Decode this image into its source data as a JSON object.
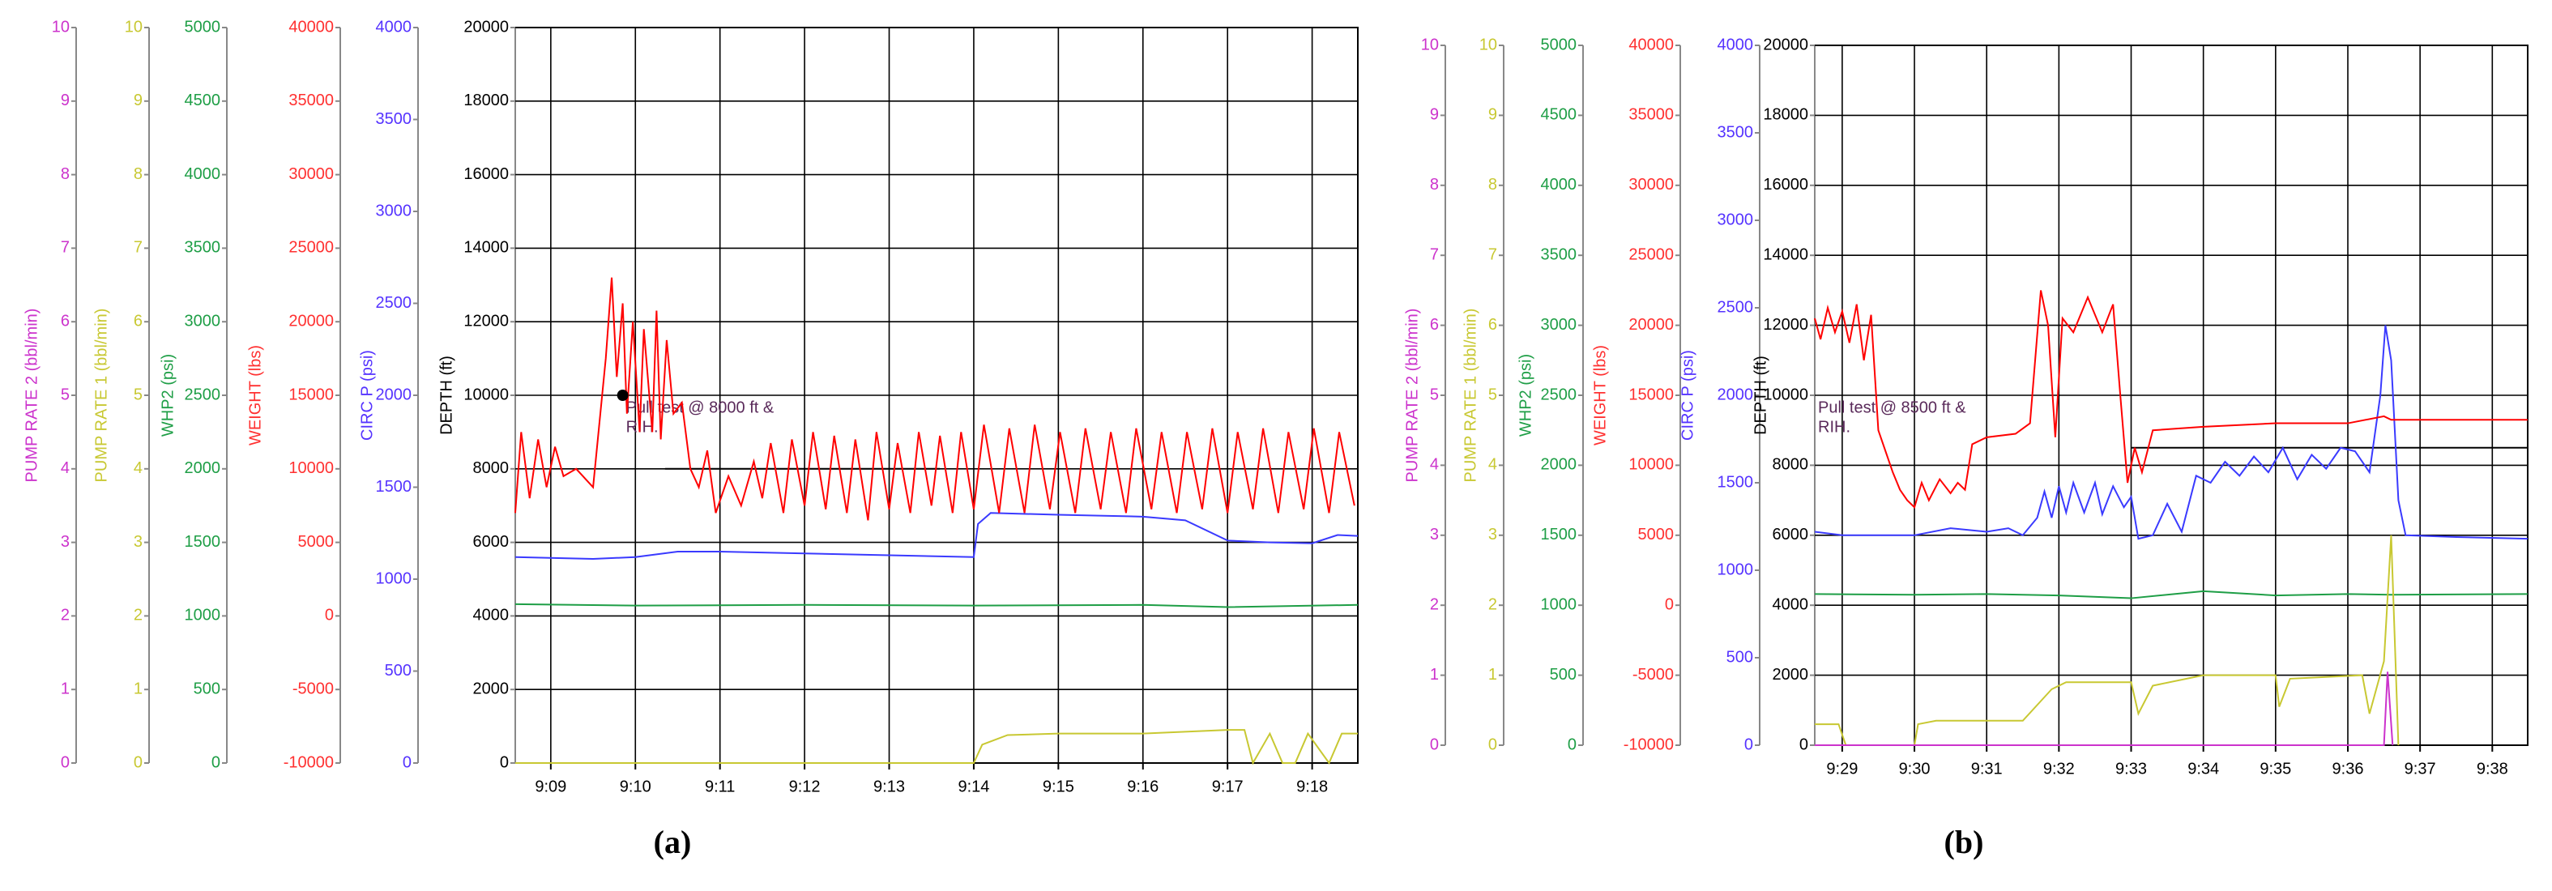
{
  "chart_data": [
    {
      "type": "line",
      "caption": "(a)",
      "grid": true,
      "xlim": [
        548.58,
        558.54
      ],
      "xticks": [
        {
          "value": 549,
          "label": "9:09"
        },
        {
          "value": 550,
          "label": "9:10"
        },
        {
          "value": 551,
          "label": "9:11"
        },
        {
          "value": 552,
          "label": "9:12"
        },
        {
          "value": 553,
          "label": "9:13"
        },
        {
          "value": 554,
          "label": "9:14"
        },
        {
          "value": 555,
          "label": "9:15"
        },
        {
          "value": 556,
          "label": "9:16"
        },
        {
          "value": 557,
          "label": "9:17"
        },
        {
          "value": 558,
          "label": "9:18"
        }
      ],
      "yaxes": [
        {
          "label": "PUMP RATE 2 (bbl/min)",
          "color": "#cc33cc",
          "ylim": [
            0,
            10
          ],
          "yticks": [
            0,
            1,
            2,
            3,
            4,
            5,
            6,
            7,
            8,
            9,
            10
          ]
        },
        {
          "label": "PUMP RATE 1 (bbl/min)",
          "color": "#c8c832",
          "ylim": [
            0,
            10
          ],
          "yticks": [
            0,
            1,
            2,
            3,
            4,
            5,
            6,
            7,
            8,
            9,
            10
          ]
        },
        {
          "label": "WHP2 (psi)",
          "color": "#1e9e46",
          "ylim": [
            0,
            5000
          ],
          "yticks": [
            0,
            500,
            1000,
            1500,
            2000,
            2500,
            3000,
            3500,
            4000,
            4500,
            5000
          ]
        },
        {
          "label": "WEIGHT (lbs)",
          "color": "#ff3030",
          "ylim": [
            -10000,
            40000
          ],
          "yticks": [
            -10000,
            -5000,
            0,
            5000,
            10000,
            15000,
            20000,
            25000,
            30000,
            35000,
            40000
          ]
        },
        {
          "label": "CIRC P (psi)",
          "color": "#5533ff",
          "ylim": [
            0,
            4000
          ],
          "yticks": [
            0,
            500,
            1000,
            1500,
            2000,
            2500,
            3000,
            3500,
            4000
          ]
        },
        {
          "label": "DEPTH (ft)",
          "color": "#000000",
          "ylim": [
            0,
            20000
          ],
          "yticks": [
            0,
            2000,
            4000,
            6000,
            8000,
            10000,
            12000,
            14000,
            16000,
            18000,
            20000
          ]
        }
      ],
      "series": [
        {
          "axis": 2,
          "color": "#1e9e46",
          "x": [
            548.58,
            550,
            552,
            554,
            556,
            557,
            558.54
          ],
          "values": [
            1080,
            1070,
            1075,
            1070,
            1075,
            1060,
            1075
          ]
        },
        {
          "axis": 1,
          "color": "#c8c832",
          "x": [
            548.58,
            554.0,
            554.1,
            554.4,
            555,
            556,
            557,
            557.2,
            557.3,
            557.5,
            557.65,
            557.8,
            557.95,
            558.2,
            558.35,
            558.54
          ],
          "values": [
            0,
            0,
            0.25,
            0.38,
            0.4,
            0.4,
            0.45,
            0.45,
            0,
            0.4,
            0,
            0,
            0.4,
            0,
            0.4,
            0.4
          ]
        },
        {
          "axis": 4,
          "color": "#3a3aff",
          "x": [
            548.58,
            549.5,
            550.0,
            550.5,
            551.0,
            552.0,
            553.0,
            554.0,
            554.05,
            554.2,
            555.0,
            556.0,
            556.5,
            557.0,
            557.5,
            558.0,
            558.3,
            558.54
          ],
          "values": [
            1120,
            1110,
            1120,
            1150,
            1150,
            1140,
            1130,
            1120,
            1300,
            1360,
            1350,
            1340,
            1320,
            1210,
            1200,
            1195,
            1240,
            1235
          ]
        },
        {
          "axis": 5,
          "color": "#000000",
          "x": [
            550.35,
            553.6
          ],
          "values": [
            8000,
            8000
          ]
        },
        {
          "axis": 3,
          "color": "#ff0000",
          "x": [
            548.58,
            548.65,
            548.75,
            548.85,
            548.95,
            549.05,
            549.15,
            549.3,
            549.5,
            549.65,
            549.72,
            549.78,
            549.85,
            549.9,
            549.97,
            550.05,
            550.1,
            550.2,
            550.25,
            550.3,
            550.37,
            550.45,
            550.55,
            550.65,
            550.75,
            550.85,
            550.95,
            551.1,
            551.25,
            551.4,
            551.5,
            551.6,
            551.75,
            551.85,
            552.0,
            552.1,
            552.25,
            552.35,
            552.5,
            552.6,
            552.75,
            552.85,
            553.0,
            553.1,
            553.25,
            553.35,
            553.5,
            553.6,
            553.75,
            553.85,
            554.0,
            554.12,
            554.3,
            554.42,
            554.6,
            554.72,
            554.9,
            555.02,
            555.2,
            555.32,
            555.5,
            555.62,
            555.8,
            555.92,
            556.1,
            556.22,
            556.4,
            556.52,
            556.7,
            556.82,
            557.0,
            557.12,
            557.3,
            557.42,
            557.6,
            557.72,
            557.9,
            558.02,
            558.2,
            558.32,
            558.5
          ],
          "values": [
            7000,
            12500,
            8000,
            12000,
            8750,
            11500,
            9500,
            10000,
            8750,
            17500,
            23000,
            16250,
            21250,
            13750,
            20000,
            12500,
            19500,
            12500,
            20750,
            12000,
            18750,
            13750,
            14500,
            10000,
            8750,
            11250,
            7000,
            9500,
            7500,
            10500,
            8000,
            11750,
            7000,
            12000,
            7500,
            12500,
            7250,
            12250,
            7000,
            12000,
            6500,
            12500,
            7250,
            11750,
            7000,
            12500,
            7500,
            12250,
            7000,
            12500,
            7250,
            13000,
            7000,
            12750,
            7000,
            13000,
            7250,
            12500,
            7000,
            12750,
            7250,
            12500,
            7000,
            12750,
            7250,
            12500,
            7000,
            12500,
            7250,
            12750,
            7000,
            12500,
            7250,
            12750,
            7000,
            12500,
            7250,
            12750,
            7000,
            12500,
            7500
          ]
        }
      ],
      "annotations": [
        {
          "lines": [
            "Pull test @ 8000 ft &",
            "RIH."
          ],
          "axis": 5,
          "x": 549.85,
          "y": 10000,
          "marker": true
        }
      ]
    },
    {
      "type": "line",
      "caption": "(b)",
      "grid": true,
      "xlim": [
        568.62,
        578.49
      ],
      "xticks": [
        {
          "value": 569,
          "label": "9:29"
        },
        {
          "value": 570,
          "label": "9:30"
        },
        {
          "value": 571,
          "label": "9:31"
        },
        {
          "value": 572,
          "label": "9:32"
        },
        {
          "value": 573,
          "label": "9:33"
        },
        {
          "value": 574,
          "label": "9:34"
        },
        {
          "value": 575,
          "label": "9:35"
        },
        {
          "value": 576,
          "label": "9:36"
        },
        {
          "value": 577,
          "label": "9:37"
        },
        {
          "value": 578,
          "label": "9:38"
        }
      ],
      "yaxes": [
        {
          "label": "PUMP RATE 2 (bbl/min)",
          "color": "#cc33cc",
          "ylim": [
            0,
            10
          ],
          "yticks": [
            0,
            1,
            2,
            3,
            4,
            5,
            6,
            7,
            8,
            9,
            10
          ]
        },
        {
          "label": "PUMP RATE 1 (bbl/min)",
          "color": "#c8c832",
          "ylim": [
            0,
            10
          ],
          "yticks": [
            0,
            1,
            2,
            3,
            4,
            5,
            6,
            7,
            8,
            9,
            10
          ]
        },
        {
          "label": "WHP2 (psi)",
          "color": "#1e9e46",
          "ylim": [
            0,
            5000
          ],
          "yticks": [
            0,
            500,
            1000,
            1500,
            2000,
            2500,
            3000,
            3500,
            4000,
            4500,
            5000
          ]
        },
        {
          "label": "WEIGHT (lbs)",
          "color": "#ff3030",
          "ylim": [
            -10000,
            40000
          ],
          "yticks": [
            -10000,
            -5000,
            0,
            5000,
            10000,
            15000,
            20000,
            25000,
            30000,
            35000,
            40000
          ]
        },
        {
          "label": "CIRC P (psi)",
          "color": "#5533ff",
          "ylim": [
            0,
            4000
          ],
          "yticks": [
            0,
            500,
            1000,
            1500,
            2000,
            2500,
            3000,
            3500,
            4000
          ]
        },
        {
          "label": "DEPTH (ft)",
          "color": "#000000",
          "ylim": [
            0,
            20000
          ],
          "yticks": [
            0,
            2000,
            4000,
            6000,
            8000,
            10000,
            12000,
            14000,
            16000,
            18000,
            20000
          ]
        }
      ],
      "series": [
        {
          "axis": 2,
          "color": "#1e9e46",
          "x": [
            568.62,
            570,
            571,
            572,
            573,
            574,
            575,
            576,
            576.6,
            578.49
          ],
          "values": [
            1080,
            1075,
            1080,
            1070,
            1050,
            1100,
            1070,
            1080,
            1075,
            1080
          ]
        },
        {
          "axis": 5,
          "color": "#000000",
          "x": [
            573.0,
            578.49
          ],
          "values": [
            8500,
            8500
          ]
        },
        {
          "axis": 1,
          "color": "#c8c832",
          "x": [
            568.62,
            568.95,
            569.05,
            570.0,
            570.05,
            570.3,
            571.0,
            571.5,
            571.9,
            572.1,
            573.0,
            573.1,
            573.3,
            574,
            575,
            575.05,
            575.2,
            576.2,
            576.3,
            576.5,
            576.6,
            576.65,
            576.7
          ],
          "values": [
            0.3,
            0.3,
            0,
            0,
            0.3,
            0.35,
            0.35,
            0.35,
            0.8,
            0.9,
            0.9,
            0.45,
            0.85,
            1.0,
            1.0,
            0.55,
            0.95,
            1.0,
            0.45,
            1.2,
            3.0,
            1.5,
            0
          ]
        },
        {
          "axis": 0,
          "color": "#cc33cc",
          "x": [
            568.62,
            576.5,
            576.55,
            576.62
          ],
          "values": [
            0,
            0,
            1.05,
            0
          ]
        },
        {
          "axis": 4,
          "color": "#3a3aff",
          "x": [
            568.62,
            569,
            570,
            570.5,
            571,
            571.3,
            571.5,
            571.7,
            571.8,
            571.9,
            572,
            572.1,
            572.2,
            572.35,
            572.5,
            572.6,
            572.75,
            572.9,
            573.0,
            573.1,
            573.3,
            573.5,
            573.7,
            573.9,
            574.1,
            574.3,
            574.5,
            574.7,
            574.9,
            575.1,
            575.3,
            575.5,
            575.7,
            575.9,
            576.1,
            576.3,
            576.45,
            576.52,
            576.6,
            576.7,
            576.8,
            577.5,
            578.49
          ],
          "values": [
            1220,
            1200,
            1200,
            1240,
            1220,
            1240,
            1200,
            1300,
            1450,
            1300,
            1480,
            1330,
            1500,
            1330,
            1500,
            1320,
            1480,
            1360,
            1420,
            1180,
            1200,
            1380,
            1220,
            1540,
            1500,
            1620,
            1540,
            1650,
            1560,
            1700,
            1520,
            1660,
            1580,
            1700,
            1680,
            1560,
            2000,
            2400,
            2200,
            1400,
            1200,
            1190,
            1180
          ]
        },
        {
          "axis": 3,
          "color": "#ff0000",
          "x": [
            568.62,
            568.7,
            568.8,
            568.9,
            569.0,
            569.1,
            569.2,
            569.3,
            569.4,
            569.5,
            569.6,
            569.7,
            569.8,
            569.9,
            570.0,
            570.1,
            570.2,
            570.35,
            570.5,
            570.6,
            570.7,
            570.8,
            571.0,
            571.4,
            571.6,
            571.75,
            571.85,
            571.95,
            572.05,
            572.2,
            572.4,
            572.6,
            572.75,
            572.85,
            572.95,
            573.05,
            573.15,
            573.3,
            574,
            575,
            576,
            576.5,
            576.6,
            578.49
          ],
          "values": [
            20500,
            19000,
            21250,
            19500,
            21000,
            18750,
            21500,
            17500,
            20750,
            12500,
            11000,
            9500,
            8250,
            7500,
            7000,
            8750,
            7500,
            9000,
            8000,
            8750,
            8250,
            11500,
            12000,
            12250,
            13000,
            22500,
            20000,
            12000,
            20500,
            19500,
            22000,
            19500,
            21500,
            15000,
            8750,
            11250,
            9500,
            12500,
            12750,
            13000,
            13000,
            13500,
            13250,
            13250
          ]
        }
      ],
      "annotations": [
        {
          "lines": [
            "Pull test @ 8500 ft &",
            "RIH."
          ],
          "axis": 5,
          "x": 568.62,
          "y": 10000
        }
      ]
    }
  ]
}
